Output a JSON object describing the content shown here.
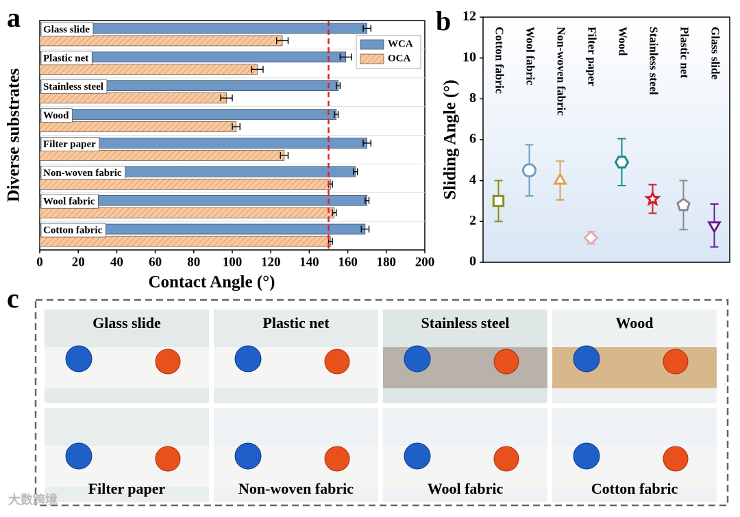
{
  "chart_data": [
    {
      "type": "hbar",
      "panel_label": "a",
      "categories": [
        "Glass slide",
        "Plastic net",
        "Stainless steel",
        "Wood",
        "Filter paper",
        "Non-woven fabric",
        "Wool fabric",
        "Cotton fabric"
      ],
      "series": [
        {
          "name": "WCA",
          "color": "#6d97c7",
          "values": [
            170,
            159,
            155,
            154,
            170,
            164,
            170,
            169
          ],
          "errors": [
            2,
            3,
            1,
            1,
            2,
            1,
            1,
            2
          ]
        },
        {
          "name": "OCA",
          "color": "#f7c9a0",
          "hatch": "#e07b39",
          "values": [
            126,
            113,
            97,
            102,
            127,
            151,
            153,
            151
          ],
          "errors": [
            3,
            3,
            3,
            2,
            2,
            1,
            1,
            1
          ]
        }
      ],
      "xlabel": "Contact Angle (°)",
      "ylabel": "Diverse substrates",
      "xlim": [
        0,
        200
      ],
      "xticks": [
        0,
        20,
        40,
        60,
        80,
        100,
        120,
        140,
        160,
        180,
        200
      ],
      "reference_x": 150,
      "reference_color": "#e0202a",
      "grid": true,
      "legend": "upper right"
    },
    {
      "type": "scatter",
      "panel_label": "b",
      "categories": [
        "Cotton fabric",
        "Wool fabric",
        "Non-woven fabric",
        "Filter paper",
        "Wood",
        "Stainless steel",
        "Plastic net",
        "Glass slide"
      ],
      "values": [
        3.0,
        4.5,
        4.0,
        1.2,
        4.9,
        3.1,
        2.8,
        1.8
      ],
      "errors": [
        1.0,
        1.25,
        0.95,
        0.3,
        1.15,
        0.7,
        1.2,
        1.05
      ],
      "colors": [
        "#8c8c1c",
        "#6d9dc5",
        "#e0a050",
        "#e8a8b8",
        "#1a8a8a",
        "#d0202e",
        "#8a8a8a",
        "#6a1a9a"
      ],
      "markers": [
        "square",
        "circle",
        "triangle",
        "diamond",
        "hexagon",
        "star",
        "pentagon",
        "triangle-down"
      ],
      "ylabel": "Sliding Angle (°)",
      "ylim": [
        0,
        12
      ],
      "yticks": [
        0,
        2,
        4,
        6,
        8,
        10,
        12
      ]
    }
  ],
  "panel_c": {
    "label": "c",
    "captions": [
      "Glass slide",
      "Plastic net",
      "Stainless steel",
      "Wood",
      "Filter paper",
      "Non-woven fabric",
      "Wool fabric",
      "Cotton fabric"
    ]
  },
  "watermark": "大数跨境"
}
